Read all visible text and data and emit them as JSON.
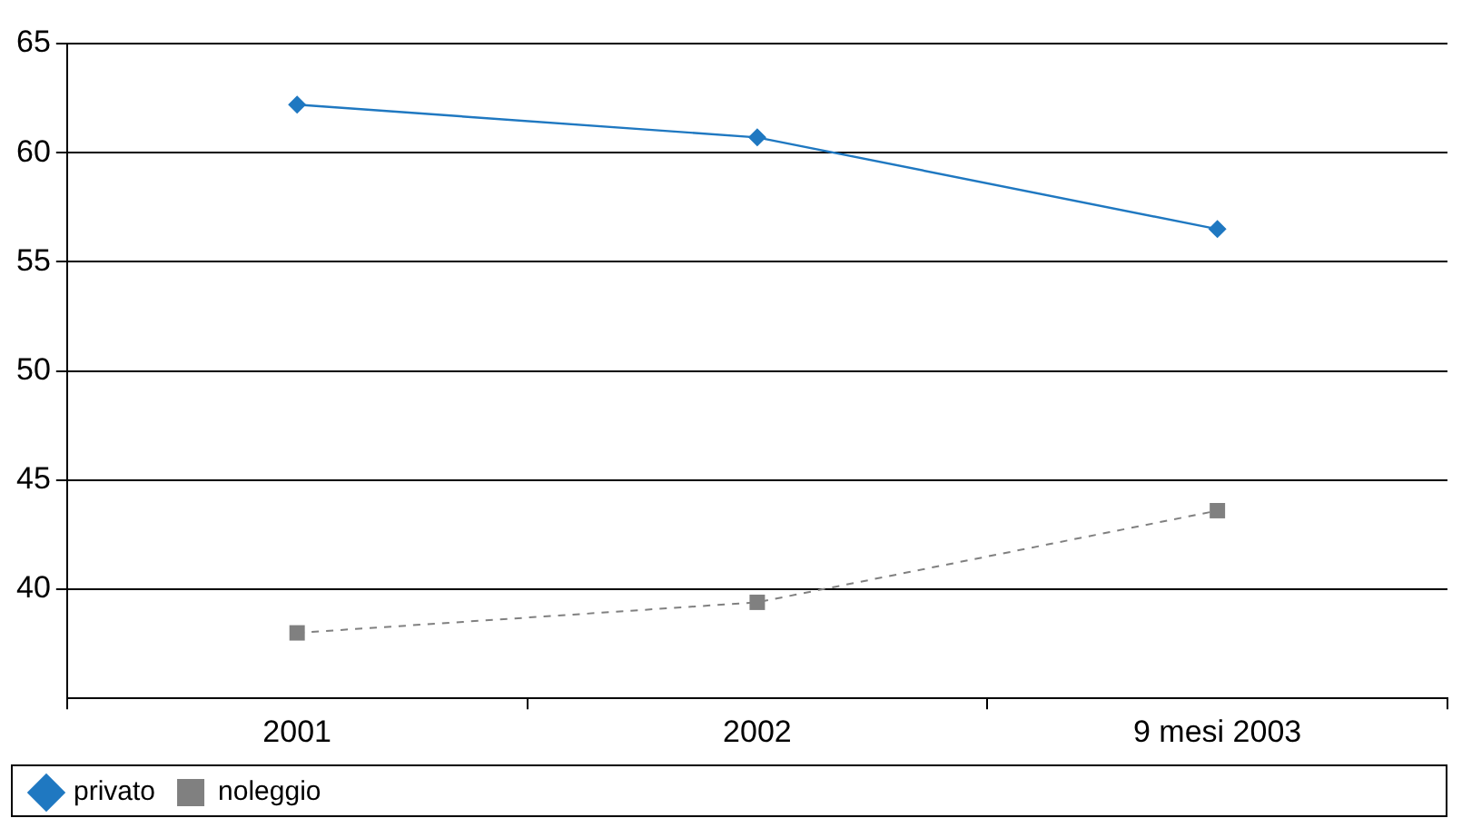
{
  "chart_data": {
    "type": "line",
    "categories": [
      "2001",
      "2002",
      "9 mesi 2003"
    ],
    "series": [
      {
        "name": "privato",
        "color": "#1f78c1",
        "values": [
          62.2,
          60.7,
          56.5
        ],
        "marker": "diamond",
        "line_style": "solid"
      },
      {
        "name": "noleggio",
        "color": "#808080",
        "values": [
          38,
          39.4,
          43.6
        ],
        "marker": "square",
        "line_style": "dashed"
      }
    ],
    "ylim": [
      35,
      65
    ],
    "yticks": [
      40,
      45,
      50,
      55,
      60,
      65
    ],
    "grid": "y",
    "legend": "bottom"
  }
}
